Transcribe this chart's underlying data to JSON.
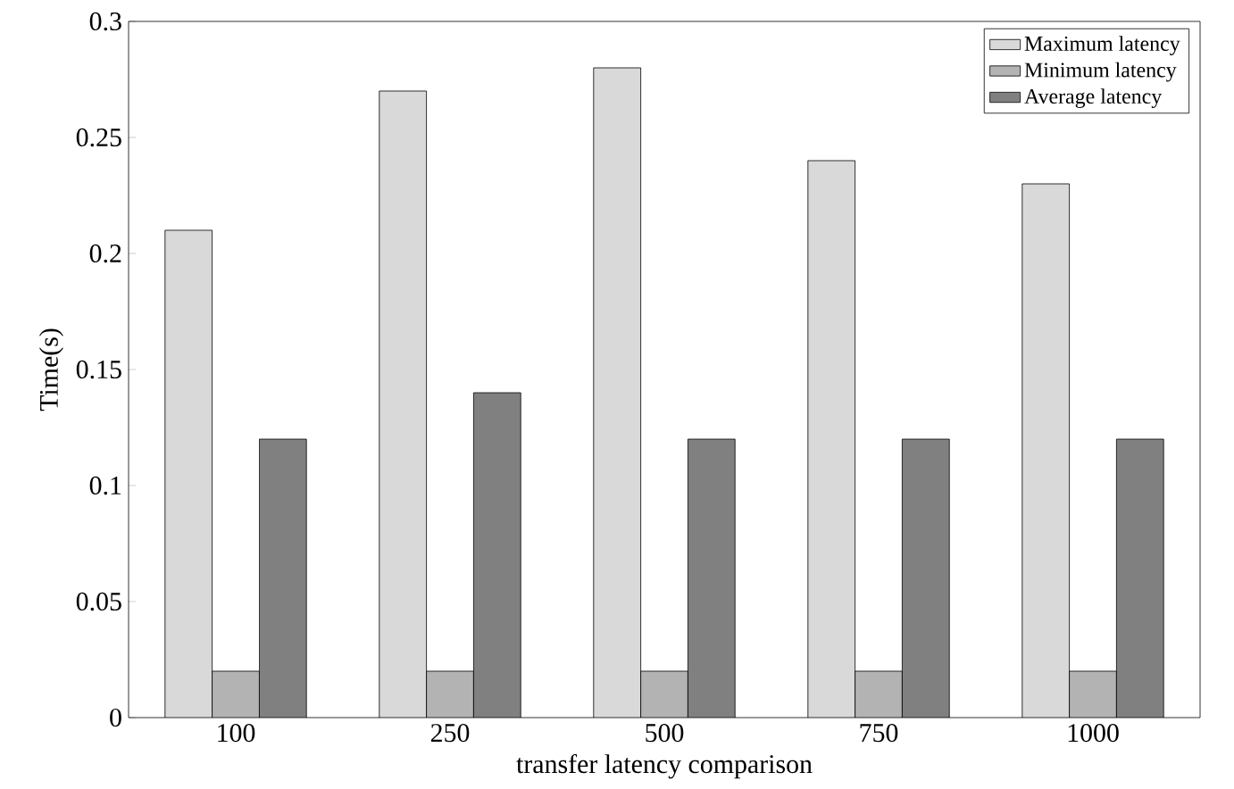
{
  "chart_data": {
    "type": "bar",
    "xlabel": "transfer latency comparison",
    "ylabel": "Time(s)",
    "categories": [
      "100",
      "250",
      "500",
      "750",
      "1000"
    ],
    "series": [
      {
        "name": "Maximum latency",
        "color": "#d9d9d9",
        "values": [
          0.21,
          0.27,
          0.28,
          0.24,
          0.23
        ]
      },
      {
        "name": "Minimum latency",
        "color": "#b3b3b3",
        "values": [
          0.02,
          0.02,
          0.02,
          0.02,
          0.02
        ]
      },
      {
        "name": "Average latency",
        "color": "#808080",
        "values": [
          0.12,
          0.14,
          0.12,
          0.12,
          0.12
        ]
      }
    ],
    "ylim": [
      0,
      0.3
    ],
    "yticks": [
      0,
      0.05,
      0.1,
      0.15,
      0.2,
      0.25,
      0.3
    ],
    "legend": "top right",
    "grid": false
  }
}
